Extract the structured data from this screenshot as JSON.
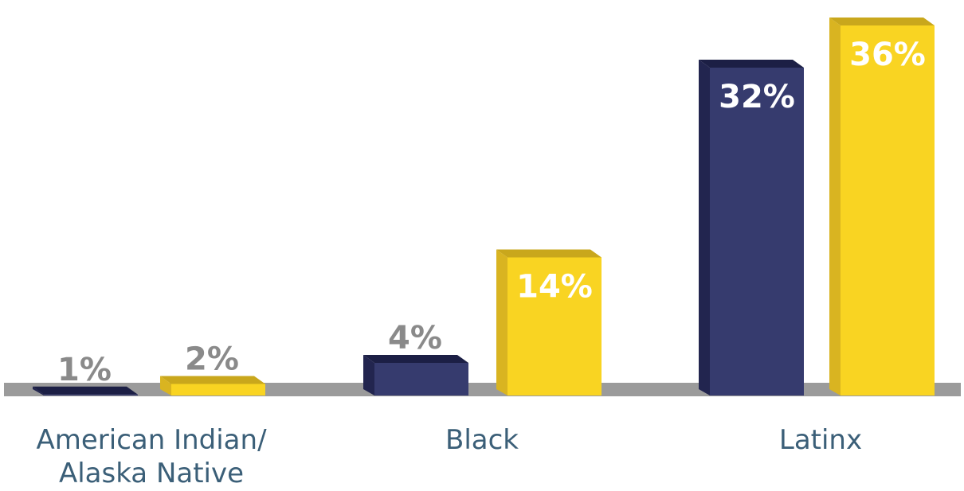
{
  "chart_data": {
    "type": "bar",
    "categories": [
      "American Indian/ Alaska Native",
      "Black",
      "Latinx"
    ],
    "category_lines": [
      [
        "American Indian/",
        "Alaska Native"
      ],
      [
        "Black"
      ],
      [
        "Latinx"
      ]
    ],
    "series": [
      {
        "values": [
          1,
          4,
          32
        ],
        "labels": [
          "1%",
          "4%",
          "32%"
        ],
        "color": "#363b6e",
        "side_color": "#22254f",
        "top_color": "#1c1f45"
      },
      {
        "values": [
          2,
          14,
          36
        ],
        "labels": [
          "2%",
          "14%",
          "36%"
        ],
        "color": "#f9d422",
        "side_color": "#d9b421",
        "top_color": "#c9a71c"
      }
    ],
    "ylim": [
      0,
      36
    ],
    "baseline_color": "#9b9b9b",
    "inside_label_color": "#ffffff",
    "outside_label_color": "#8a8a8a",
    "category_label_color": "#3b5f78"
  }
}
